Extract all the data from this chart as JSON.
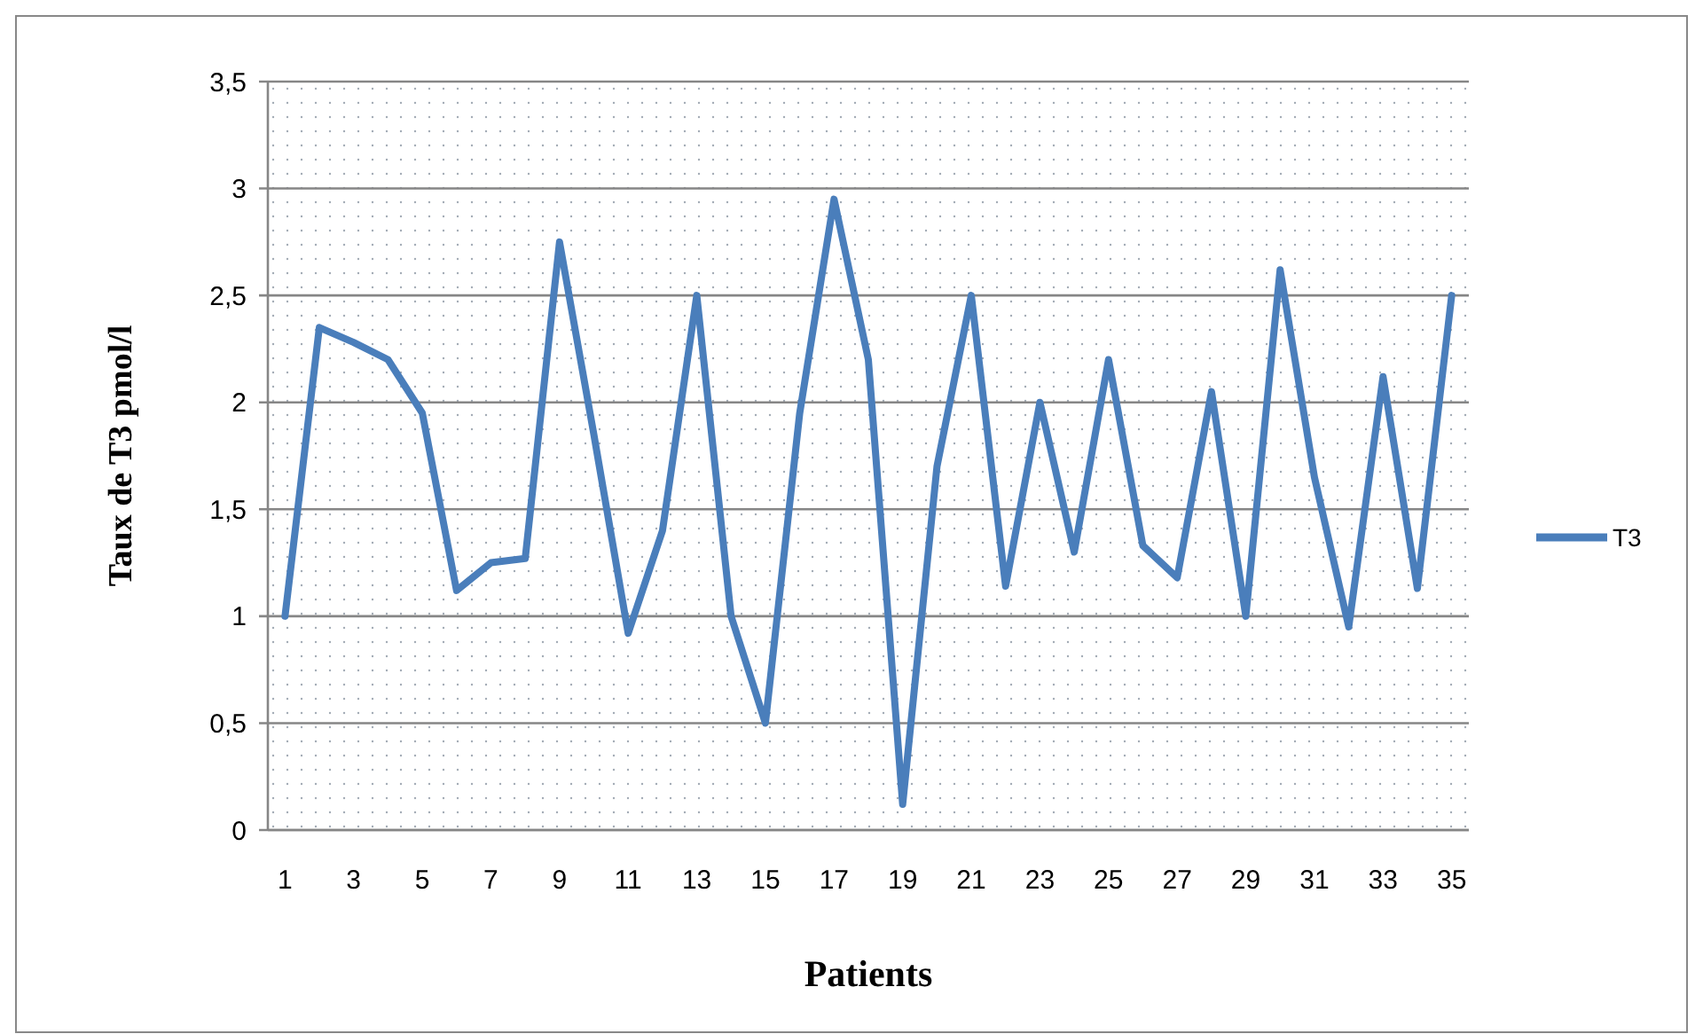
{
  "chart_data": {
    "type": "line",
    "xlabel": "Patients",
    "ylabel": "Taux de T3 pmol/l",
    "x": [
      1,
      2,
      3,
      4,
      5,
      6,
      7,
      8,
      9,
      10,
      11,
      12,
      13,
      14,
      15,
      16,
      17,
      18,
      19,
      20,
      21,
      22,
      23,
      24,
      25,
      26,
      27,
      28,
      29,
      30,
      31,
      32,
      33,
      34,
      35
    ],
    "xlim": [
      0.5,
      35.5
    ],
    "xticks": [
      1,
      3,
      5,
      7,
      9,
      11,
      13,
      15,
      17,
      19,
      21,
      23,
      25,
      27,
      29,
      31,
      33,
      35
    ],
    "series": [
      {
        "name": "T3",
        "color": "#4a7ebb",
        "values": [
          1.0,
          2.35,
          2.28,
          2.2,
          1.95,
          1.12,
          1.25,
          1.27,
          2.75,
          1.85,
          0.92,
          1.4,
          2.5,
          1.0,
          0.5,
          1.95,
          2.95,
          2.2,
          0.12,
          1.7,
          2.5,
          1.14,
          2.0,
          1.3,
          2.2,
          1.33,
          1.18,
          2.05,
          1.0,
          2.62,
          1.65,
          0.95,
          2.12,
          1.13,
          2.5
        ]
      }
    ],
    "ylim": [
      0,
      3.5
    ],
    "yticks": [
      0,
      {
        "value": 0.5,
        "label": "0,5"
      },
      1,
      {
        "value": 1.5,
        "label": "1,5"
      },
      2,
      {
        "value": 2.5,
        "label": "2,5"
      },
      3,
      {
        "value": 3.5,
        "label": "3,5"
      }
    ],
    "grid": "y",
    "legend": "right",
    "marker": "none",
    "line_style": "solid"
  }
}
